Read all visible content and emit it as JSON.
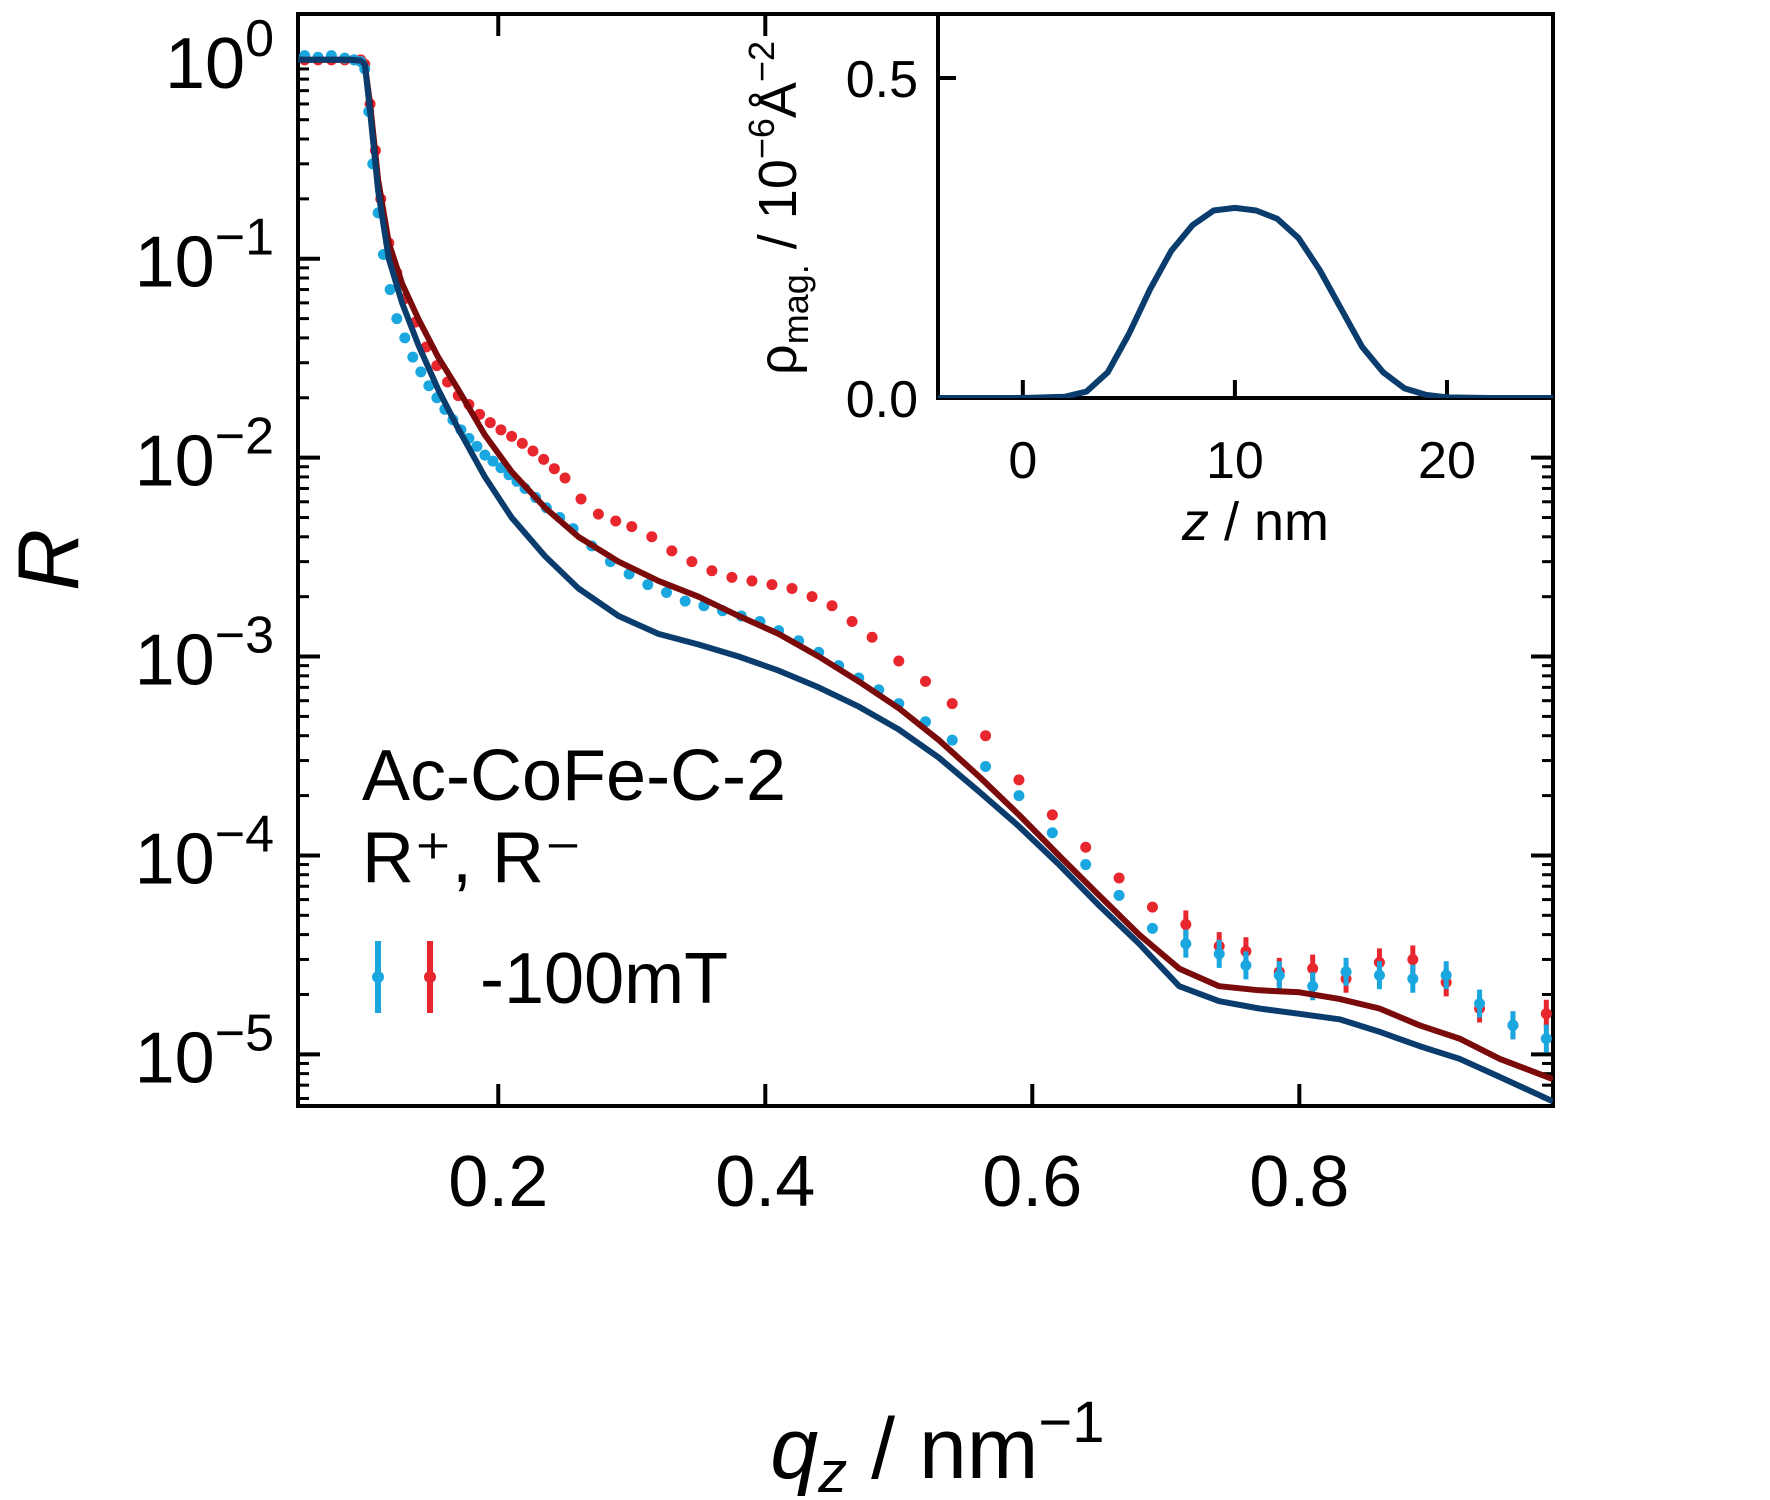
{
  "chart_data": [
    {
      "type": "scatter",
      "xlabel": {
        "var": "q",
        "sub": "z",
        "unit": "nm",
        "sup": "−1"
      },
      "ylabel": "R",
      "xlim": [
        0.05,
        0.99
      ],
      "ylim": [
        5.5e-06,
        1.7
      ],
      "yscale": "log",
      "x_ticks": [
        0.2,
        0.4,
        0.6,
        0.8
      ],
      "x_tick_labels": [
        "0.2",
        "0.4",
        "0.6",
        "0.8"
      ],
      "y_ticks": [
        1,
        0.1,
        0.01,
        0.001,
        0.0001,
        1e-05
      ],
      "y_tick_labels": [
        {
          "base": "10",
          "exp": "0"
        },
        {
          "base": "10",
          "exp": "−1"
        },
        {
          "base": "10",
          "exp": "−2"
        },
        {
          "base": "10",
          "exp": "−3"
        },
        {
          "base": "10",
          "exp": "−4"
        },
        {
          "base": "10",
          "exp": "−5"
        }
      ],
      "grid": false,
      "annotation": [
        "Ac-CoFe-C-2",
        "R⁺, R⁻"
      ],
      "legend": {
        "placement": "lower-left",
        "label": "-100mT"
      },
      "colors": {
        "plus_data": "#e8262d",
        "minus_data": "#1aa7e0",
        "plus_fit": "#7b0a0a",
        "minus_fit": "#0a3d6e"
      },
      "series": [
        {
          "kind": "points",
          "color": "#e8262d",
          "x": [
            0.055,
            0.065,
            0.075,
            0.085,
            0.092,
            0.097,
            0.1,
            0.104,
            0.108,
            0.112,
            0.118,
            0.124,
            0.13,
            0.138,
            0.146,
            0.154,
            0.162,
            0.17,
            0.178,
            0.186,
            0.194,
            0.202,
            0.21,
            0.218,
            0.226,
            0.234,
            0.242,
            0.25,
            0.262,
            0.275,
            0.288,
            0.3,
            0.315,
            0.33,
            0.345,
            0.36,
            0.375,
            0.39,
            0.405,
            0.42,
            0.435,
            0.45,
            0.465,
            0.48,
            0.5,
            0.52,
            0.54,
            0.565,
            0.59,
            0.615,
            0.64,
            0.665,
            0.69,
            0.715,
            0.74,
            0.76,
            0.785,
            0.81,
            0.835,
            0.86,
            0.885,
            0.91,
            0.935,
            0.96,
            0.985
          ],
          "y": [
            1.0,
            1.0,
            1.0,
            1.0,
            1.0,
            1.0,
            0.95,
            0.6,
            0.35,
            0.2,
            0.12,
            0.085,
            0.063,
            0.048,
            0.036,
            0.029,
            0.024,
            0.0205,
            0.0185,
            0.0165,
            0.015,
            0.0138,
            0.0128,
            0.0118,
            0.0108,
            0.0098,
            0.0088,
            0.0079,
            0.0062,
            0.0052,
            0.0048,
            0.0045,
            0.004,
            0.0034,
            0.003,
            0.0027,
            0.0025,
            0.0024,
            0.0023,
            0.0022,
            0.002,
            0.0018,
            0.0015,
            0.00125,
            0.00095,
            0.00075,
            0.00058,
            0.0004,
            0.00024,
            0.00016,
            0.00011,
            7.7e-05,
            5.5e-05,
            4.5e-05,
            3.5e-05,
            3.3e-05,
            2.6e-05,
            2.7e-05,
            2.4e-05,
            2.9e-05,
            3e-05,
            2.3e-05,
            1.7e-05,
            1.4e-05,
            1.6e-05
          ]
        },
        {
          "kind": "points",
          "color": "#1aa7e0",
          "x": [
            0.055,
            0.065,
            0.075,
            0.085,
            0.092,
            0.097,
            0.1,
            0.103,
            0.106,
            0.11,
            0.114,
            0.119,
            0.124,
            0.13,
            0.136,
            0.142,
            0.148,
            0.154,
            0.16,
            0.166,
            0.172,
            0.178,
            0.184,
            0.19,
            0.196,
            0.202,
            0.208,
            0.214,
            0.22,
            0.228,
            0.236,
            0.246,
            0.256,
            0.27,
            0.284,
            0.298,
            0.312,
            0.326,
            0.34,
            0.354,
            0.368,
            0.382,
            0.396,
            0.41,
            0.425,
            0.44,
            0.455,
            0.47,
            0.485,
            0.5,
            0.52,
            0.54,
            0.565,
            0.59,
            0.615,
            0.64,
            0.665,
            0.69,
            0.715,
            0.74,
            0.76,
            0.785,
            0.81,
            0.835,
            0.86,
            0.885,
            0.91,
            0.935,
            0.96,
            0.985
          ],
          "y": [
            1.05,
            1.03,
            1.05,
            1.02,
            1.0,
            0.98,
            0.9,
            0.55,
            0.3,
            0.17,
            0.105,
            0.07,
            0.05,
            0.04,
            0.032,
            0.027,
            0.023,
            0.02,
            0.0175,
            0.0155,
            0.0138,
            0.0125,
            0.0114,
            0.0103,
            0.0096,
            0.0089,
            0.0082,
            0.0076,
            0.007,
            0.0063,
            0.0056,
            0.005,
            0.0044,
            0.0036,
            0.003,
            0.0026,
            0.0023,
            0.0021,
            0.0019,
            0.0018,
            0.0017,
            0.0016,
            0.0015,
            0.00135,
            0.0012,
            0.00105,
            0.0009,
            0.00078,
            0.00068,
            0.00058,
            0.00047,
            0.00038,
            0.00028,
            0.0002,
            0.00013,
            9e-05,
            6.3e-05,
            4.3e-05,
            3.6e-05,
            3.2e-05,
            2.8e-05,
            2.5e-05,
            2.2e-05,
            2.6e-05,
            2.5e-05,
            2.4e-05,
            2.5e-05,
            1.8e-05,
            1.4e-05,
            1.2e-05
          ]
        },
        {
          "kind": "line",
          "color": "#7b0a0a",
          "x": [
            0.05,
            0.09,
            0.097,
            0.1,
            0.104,
            0.11,
            0.118,
            0.128,
            0.14,
            0.155,
            0.17,
            0.19,
            0.21,
            0.235,
            0.26,
            0.29,
            0.32,
            0.35,
            0.38,
            0.41,
            0.44,
            0.47,
            0.5,
            0.53,
            0.56,
            0.59,
            0.62,
            0.65,
            0.68,
            0.71,
            0.74,
            0.77,
            0.8,
            0.83,
            0.86,
            0.89,
            0.92,
            0.95,
            0.99
          ],
          "y": [
            1.0,
            1.0,
            0.99,
            0.95,
            0.6,
            0.25,
            0.12,
            0.075,
            0.05,
            0.032,
            0.022,
            0.013,
            0.0085,
            0.0056,
            0.004,
            0.003,
            0.0024,
            0.002,
            0.0016,
            0.0013,
            0.001,
            0.00075,
            0.00055,
            0.00038,
            0.00025,
            0.00016,
            0.0001,
            6.3e-05,
            4e-05,
            2.7e-05,
            2.2e-05,
            2.1e-05,
            2.05e-05,
            1.9e-05,
            1.7e-05,
            1.4e-05,
            1.2e-05,
            9.5e-06,
            7.5e-06
          ]
        },
        {
          "kind": "line",
          "color": "#0a3d6e",
          "x": [
            0.05,
            0.09,
            0.097,
            0.1,
            0.104,
            0.11,
            0.118,
            0.128,
            0.14,
            0.155,
            0.17,
            0.19,
            0.21,
            0.235,
            0.26,
            0.29,
            0.32,
            0.35,
            0.38,
            0.41,
            0.44,
            0.47,
            0.5,
            0.53,
            0.56,
            0.59,
            0.62,
            0.65,
            0.68,
            0.71,
            0.74,
            0.77,
            0.8,
            0.83,
            0.86,
            0.89,
            0.92,
            0.95,
            0.99
          ],
          "y": [
            1.0,
            1.0,
            0.99,
            0.95,
            0.55,
            0.22,
            0.1,
            0.06,
            0.037,
            0.022,
            0.014,
            0.008,
            0.005,
            0.0032,
            0.0022,
            0.0016,
            0.0013,
            0.00115,
            0.001,
            0.00085,
            0.0007,
            0.00056,
            0.00043,
            0.00031,
            0.00021,
            0.00014,
            9e-05,
            5.6e-05,
            3.6e-05,
            2.2e-05,
            1.85e-05,
            1.7e-05,
            1.6e-05,
            1.5e-05,
            1.3e-05,
            1.1e-05,
            9.5e-06,
            7.7e-06,
            5.8e-06
          ]
        }
      ]
    },
    {
      "type": "line",
      "xlabel": {
        "var": "z",
        "unit": "nm"
      },
      "ylabel": {
        "rho": "ρ",
        "sub": "mag.",
        "unit": "10",
        "unit_exp": "−6",
        "unit_tail": "Å",
        "unit_tail_exp": "−2"
      },
      "xlim": [
        -4,
        25
      ],
      "ylim": [
        0.0,
        0.6
      ],
      "x_ticks": [
        0,
        10,
        20
      ],
      "x_tick_labels": [
        "0",
        "10",
        "20"
      ],
      "y_ticks": [
        0.0,
        0.5
      ],
      "y_tick_labels": [
        "0.0",
        "0.5"
      ],
      "grid": false,
      "series": [
        {
          "color": "#0a3d6e",
          "x": [
            -4,
            -2,
            0,
            2,
            3,
            4,
            5,
            6,
            7,
            8,
            9,
            10,
            11,
            12,
            13,
            14,
            15,
            16,
            17,
            18,
            19,
            20,
            22,
            25
          ],
          "y": [
            0,
            0,
            0,
            0.002,
            0.01,
            0.04,
            0.1,
            0.17,
            0.23,
            0.27,
            0.293,
            0.297,
            0.293,
            0.28,
            0.25,
            0.2,
            0.14,
            0.08,
            0.04,
            0.015,
            0.005,
            0.001,
            0,
            0
          ]
        }
      ]
    }
  ]
}
